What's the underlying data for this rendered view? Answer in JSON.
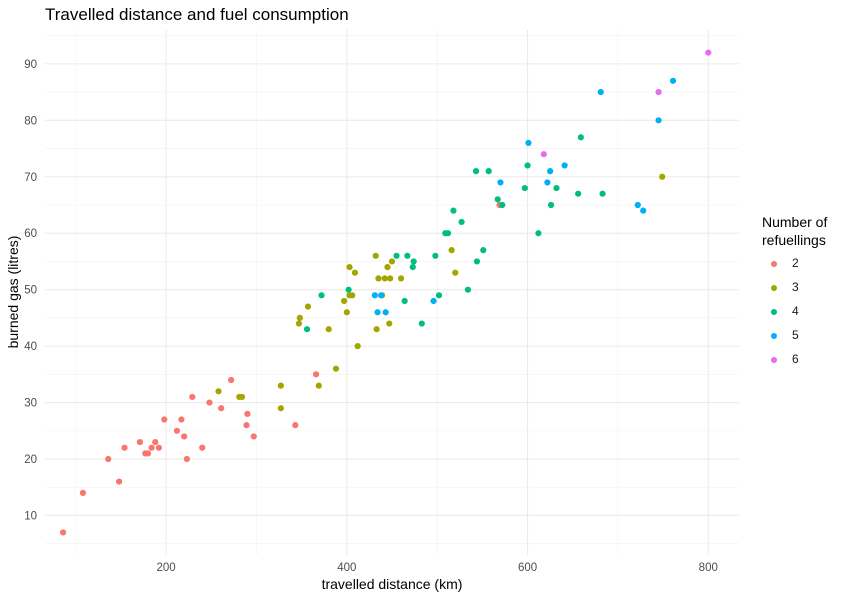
{
  "chart_data": {
    "type": "scatter",
    "title": "Travelled distance and fuel consumption",
    "xlabel": "travelled distance (km)",
    "ylabel": "burned gas (litres)",
    "xlim": [
      66,
      834
    ],
    "ylim": [
      3,
      96
    ],
    "xticks": [
      200,
      400,
      600,
      800
    ],
    "yticks": [
      10,
      20,
      30,
      40,
      50,
      60,
      70,
      80,
      90
    ],
    "grid": true,
    "legend_position": "right",
    "legend_title": "Number of refuellings",
    "colors": {
      "2": "#F8766D",
      "3": "#A3A500",
      "4": "#00BF7D",
      "5": "#00B0F6",
      "6": "#E76BF3"
    },
    "series": [
      {
        "name": "2",
        "points": [
          [
            86,
            7
          ],
          [
            108,
            14
          ],
          [
            136,
            20
          ],
          [
            148,
            16
          ],
          [
            154,
            22
          ],
          [
            171,
            23
          ],
          [
            177,
            21
          ],
          [
            180,
            21
          ],
          [
            184,
            22
          ],
          [
            188,
            23
          ],
          [
            192,
            22
          ],
          [
            198,
            27
          ],
          [
            212,
            25
          ],
          [
            217,
            27
          ],
          [
            220,
            24
          ],
          [
            223,
            20
          ],
          [
            229,
            31
          ],
          [
            240,
            22
          ],
          [
            248,
            30
          ],
          [
            261,
            29
          ],
          [
            272,
            34
          ],
          [
            289,
            26
          ],
          [
            290,
            28
          ],
          [
            297,
            24
          ],
          [
            343,
            26
          ],
          [
            366,
            35
          ],
          [
            569,
            65
          ]
        ]
      },
      {
        "name": "3",
        "points": [
          [
            258,
            32
          ],
          [
            281,
            31
          ],
          [
            284,
            31
          ],
          [
            327,
            33
          ],
          [
            327,
            29
          ],
          [
            347,
            44
          ],
          [
            348,
            45
          ],
          [
            357,
            47
          ],
          [
            369,
            33
          ],
          [
            380,
            43
          ],
          [
            388,
            36
          ],
          [
            397,
            48
          ],
          [
            400,
            46
          ],
          [
            403,
            54
          ],
          [
            403,
            49
          ],
          [
            406,
            49
          ],
          [
            409,
            53
          ],
          [
            412,
            40
          ],
          [
            432,
            56
          ],
          [
            433,
            43
          ],
          [
            435,
            52
          ],
          [
            439,
            49
          ],
          [
            442,
            52
          ],
          [
            447,
            44
          ],
          [
            445,
            54
          ],
          [
            448,
            52
          ],
          [
            450,
            55
          ],
          [
            460,
            52
          ],
          [
            516,
            57
          ],
          [
            520,
            53
          ],
          [
            749,
            70
          ]
        ]
      },
      {
        "name": "4",
        "points": [
          [
            356,
            43
          ],
          [
            372,
            49
          ],
          [
            402,
            50
          ],
          [
            455,
            56
          ],
          [
            464,
            48
          ],
          [
            467,
            56
          ],
          [
            473,
            54
          ],
          [
            474,
            55
          ],
          [
            483,
            44
          ],
          [
            498,
            56
          ],
          [
            502,
            49
          ],
          [
            509,
            60
          ],
          [
            512,
            60
          ],
          [
            518,
            64
          ],
          [
            527,
            62
          ],
          [
            534,
            50
          ],
          [
            543,
            71
          ],
          [
            544,
            55
          ],
          [
            551,
            57
          ],
          [
            557,
            71
          ],
          [
            567,
            66
          ],
          [
            572,
            65
          ],
          [
            597,
            68
          ],
          [
            600,
            72
          ],
          [
            612,
            60
          ],
          [
            626,
            65
          ],
          [
            632,
            68
          ],
          [
            656,
            67
          ],
          [
            659,
            77
          ],
          [
            683,
            67
          ]
        ]
      },
      {
        "name": "5",
        "points": [
          [
            431,
            49
          ],
          [
            434,
            46
          ],
          [
            438,
            49
          ],
          [
            443,
            46
          ],
          [
            496,
            48
          ],
          [
            570,
            69
          ],
          [
            601,
            76
          ],
          [
            622,
            69
          ],
          [
            625,
            71
          ],
          [
            641,
            72
          ],
          [
            681,
            85
          ],
          [
            722,
            65
          ],
          [
            728,
            64
          ],
          [
            745,
            80
          ],
          [
            761,
            87
          ]
        ]
      },
      {
        "name": "6",
        "points": [
          [
            618,
            74
          ],
          [
            745,
            85
          ],
          [
            800,
            92
          ]
        ]
      }
    ]
  }
}
